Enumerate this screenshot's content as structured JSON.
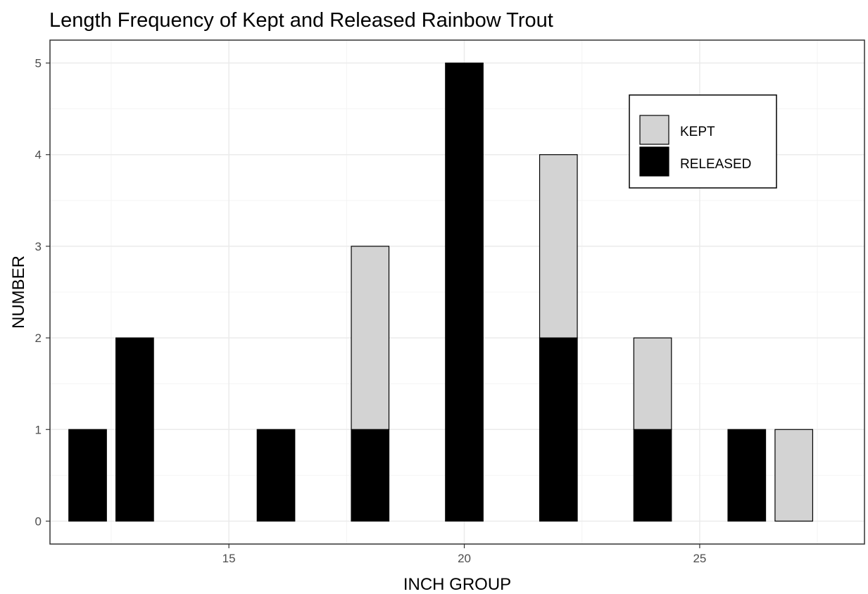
{
  "chart_data": {
    "type": "bar",
    "stacked": true,
    "title": "Length Frequency of Kept and Released Rainbow Trout",
    "xlabel": "INCH GROUP",
    "ylabel": "NUMBER",
    "xlim": [
      11.2,
      28.5
    ],
    "ylim": [
      -0.25,
      5.25
    ],
    "x_ticks": [
      15,
      20,
      25
    ],
    "x_tick_labels": [
      "15",
      "20",
      "25"
    ],
    "y_ticks": [
      0,
      1,
      2,
      3,
      4,
      5
    ],
    "y_tick_labels": [
      "0",
      "1",
      "2",
      "3",
      "4",
      "5"
    ],
    "bar_width": 0.8,
    "grid": true,
    "legend_position": "top-right",
    "legend": [
      {
        "key": "kept",
        "label": "KEPT",
        "color": "#d3d3d3"
      },
      {
        "key": "released",
        "label": "RELEASED",
        "color": "#000000"
      }
    ],
    "bars": [
      {
        "x": 12,
        "released": 1,
        "kept": 0
      },
      {
        "x": 13,
        "released": 2,
        "kept": 0
      },
      {
        "x": 16,
        "released": 1,
        "kept": 0
      },
      {
        "x": 18,
        "released": 1,
        "kept": 2
      },
      {
        "x": 20,
        "released": 5,
        "kept": 0
      },
      {
        "x": 22,
        "released": 2,
        "kept": 2
      },
      {
        "x": 24,
        "released": 1,
        "kept": 1
      },
      {
        "x": 26,
        "released": 1,
        "kept": 0
      },
      {
        "x": 27,
        "released": 0,
        "kept": 1
      }
    ],
    "colors": {
      "kept": "#d3d3d3",
      "released": "#000000",
      "grid_major": "#ebebeb",
      "grid_minor": "#f4f4f4",
      "panel_border": "#333333",
      "tick_text": "#4d4d4d"
    }
  }
}
